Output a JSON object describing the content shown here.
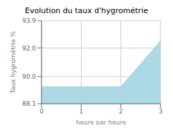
{
  "chart_data": {
    "type": "area",
    "title": "Evolution du taux d'hygrométrie",
    "xlabel": "heure par heure",
    "ylabel": "Taux hygrométrie %",
    "x": [
      0,
      2,
      3
    ],
    "values": [
      89.3,
      89.3,
      92.5
    ],
    "color": "#add8e6",
    "xlim": [
      0,
      3
    ],
    "ylim": [
      88.1,
      93.9
    ],
    "xticks": [
      0,
      1,
      2,
      3
    ],
    "yticks": [
      88.1,
      {
        "value": 90,
        "label": "90.0"
      },
      {
        "value": 92,
        "label": "92.0"
      },
      93.9
    ],
    "grid": true
  }
}
